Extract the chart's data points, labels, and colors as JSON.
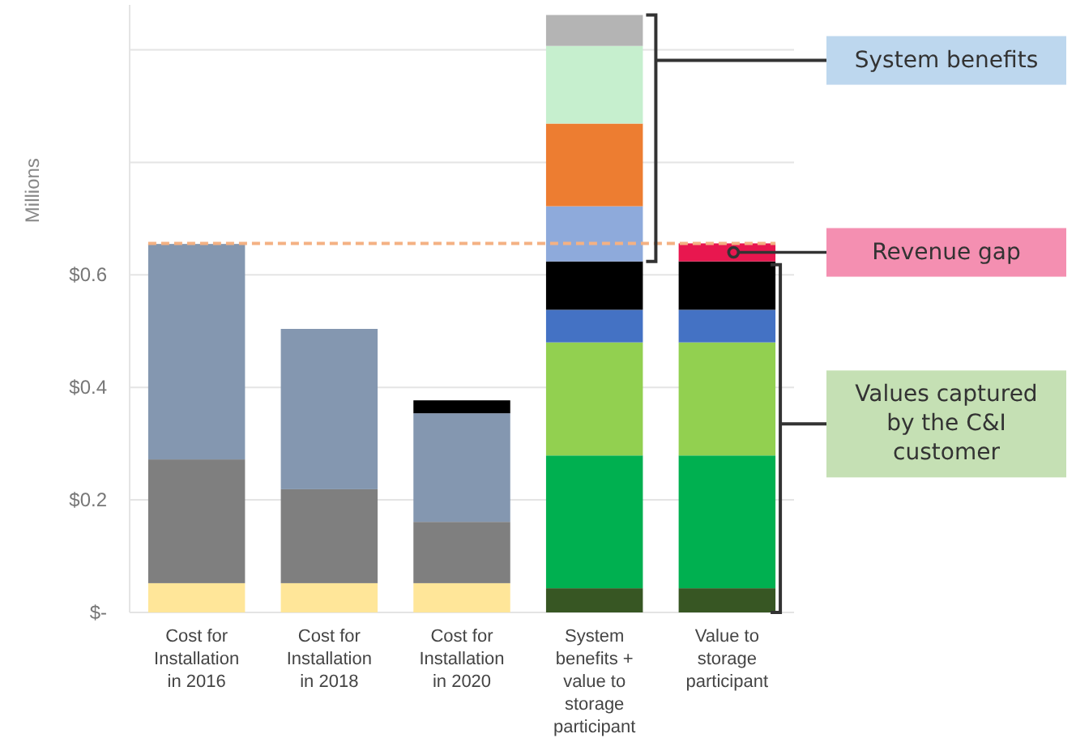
{
  "chart_data": {
    "type": "bar",
    "stacked": true,
    "ylabel": "Millions",
    "categories": [
      "Cost for Installation in 2016",
      "Cost for Installation in 2018",
      "Cost for Installation in 2020",
      "System benefits + value to storage participant",
      "Value to storage participant"
    ],
    "series": [
      {
        "color": "#ffe699",
        "values": [
          0.052,
          0.052,
          0.052,
          null,
          null
        ]
      },
      {
        "color": "#7f7f7f",
        "values": [
          0.22,
          0.167,
          0.109,
          null,
          null
        ]
      },
      {
        "color": "#8497b0",
        "values": [
          0.383,
          0.285,
          0.193,
          null,
          null
        ]
      },
      {
        "color": "#375623",
        "values": [
          null,
          null,
          null,
          0.043,
          0.043
        ]
      },
      {
        "color": "#00b050",
        "values": [
          null,
          null,
          null,
          0.236,
          0.236
        ]
      },
      {
        "color": "#92d050",
        "values": [
          null,
          null,
          null,
          0.201,
          0.201
        ]
      },
      {
        "color": "#4472c4",
        "values": [
          null,
          null,
          null,
          0.058,
          0.058
        ]
      },
      {
        "color": "#000000",
        "values": [
          null,
          null,
          0.023,
          0.086,
          0.086
        ]
      },
      {
        "color": "#8eaadb",
        "values": [
          null,
          null,
          null,
          0.098,
          null
        ]
      },
      {
        "color": "#ed7d31",
        "values": [
          null,
          null,
          null,
          0.147,
          null
        ]
      },
      {
        "color": "#c6efce",
        "values": [
          null,
          null,
          null,
          0.138,
          null
        ]
      },
      {
        "color": "#b4b4b4",
        "values": [
          null,
          null,
          null,
          0.055,
          null
        ]
      },
      {
        "color": "#e8174f",
        "values": [
          null,
          null,
          null,
          null,
          0.032
        ]
      }
    ],
    "ylim": [
      0,
      1.08
    ],
    "yticks": [
      {
        "value": 0,
        "label": "$-"
      },
      {
        "value": 0.2,
        "label": "$0.2"
      },
      {
        "value": 0.4,
        "label": "$0.4"
      },
      {
        "value": 0.6,
        "label": "$0.6"
      },
      {
        "value": 0.8,
        "label": null
      },
      {
        "value": 1.0,
        "label": null
      }
    ],
    "grid": "y",
    "ref_lines": [
      {
        "axis": "y",
        "value": 0.656,
        "color": "#f4b183",
        "line_style": "dashed"
      }
    ],
    "annotations": [
      "System benefits",
      "Revenue gap",
      "Values captured by the C&I customer"
    ]
  }
}
